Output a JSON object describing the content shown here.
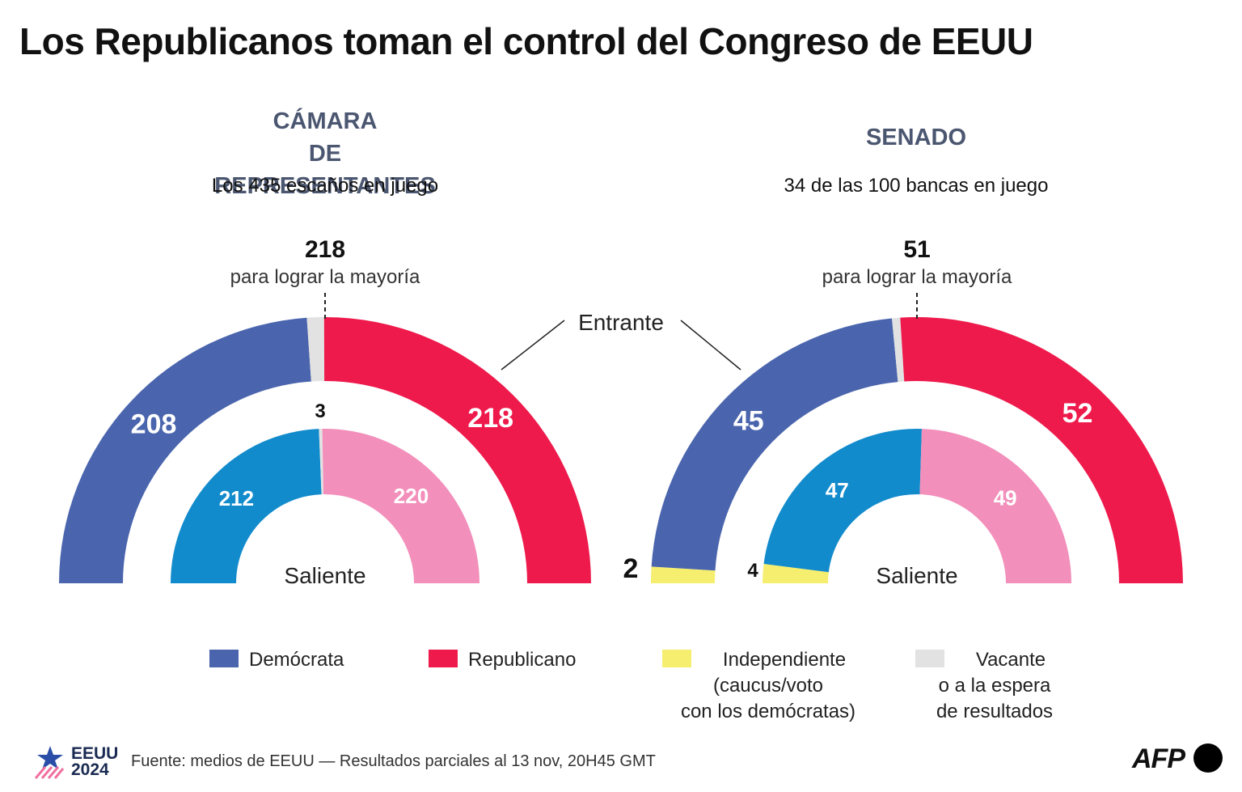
{
  "title": "Los Republicanos toman el control del Congreso de EEUU",
  "house": {
    "title_line1": "CÁMARA",
    "title_line2": "DE REPRESENTANTES",
    "subtitle": "Los 435 escaños en juego",
    "majority_value": "218",
    "majority_text": "para lograr la mayoría",
    "inner_label": "Saliente"
  },
  "senate": {
    "title": "SENADO",
    "subtitle": "34 de las 100 bancas en juego",
    "majority_value": "51",
    "majority_text": "para lograr la mayoría",
    "inner_label": "Saliente"
  },
  "entrante_label": "Entrante",
  "legend": {
    "democrat": "Demócrata",
    "republican": "Republicano",
    "independent_1": "Independiente",
    "independent_2": "(caucus/voto",
    "independent_3": "con los demócratas)",
    "vacant_1": "Vacante",
    "vacant_2": "o a la espera",
    "vacant_3": "de resultados"
  },
  "footer": {
    "source": "Fuente: medios de EEUU — Resultados parciales al 13 nov, 20H45 GMT",
    "badge_line1": "EEUU",
    "badge_line2": "2024",
    "logo": "AFP"
  },
  "colors": {
    "democrat_incoming": "#4a65ad",
    "republican_incoming": "#ee1a4c",
    "democrat_outgoing": "#128bcc",
    "republican_outgoing": "#f28fbb",
    "independent": "#f5ee6e",
    "vacant": "#e2e2e2"
  },
  "chart_data": [
    {
      "type": "pie",
      "name": "CÁMARA DE REPRESENTANTES",
      "total": 435,
      "majority": 218,
      "incoming": [
        {
          "party": "Demócrata",
          "value": 208
        },
        {
          "party": "Vacante",
          "value": 9
        },
        {
          "party": "Republicano",
          "value": 218
        }
      ],
      "outgoing": [
        {
          "party": "Demócrata",
          "value": 212
        },
        {
          "party": "Vacante",
          "value": 3
        },
        {
          "party": "Republicano",
          "value": 220
        }
      ]
    },
    {
      "type": "pie",
      "name": "SENADO",
      "total": 100,
      "majority": 51,
      "incoming": [
        {
          "party": "Independiente",
          "value": 2
        },
        {
          "party": "Demócrata",
          "value": 45
        },
        {
          "party": "Vacante",
          "value": 1
        },
        {
          "party": "Republicano",
          "value": 52
        }
      ],
      "outgoing": [
        {
          "party": "Independiente",
          "value": 4
        },
        {
          "party": "Demócrata",
          "value": 47
        },
        {
          "party": "Republicano",
          "value": 49
        }
      ]
    }
  ]
}
